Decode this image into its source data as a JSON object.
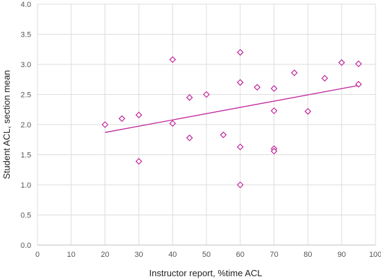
{
  "chart_data": {
    "type": "scatter",
    "xlabel": "Instructor report, %time ACL",
    "ylabel": "Student ACL, section mean",
    "xlim": [
      0,
      100
    ],
    "ylim": [
      0.0,
      4.0
    ],
    "x_ticks": [
      "0",
      "10",
      "20",
      "30",
      "40",
      "50",
      "60",
      "70",
      "80",
      "90",
      "100"
    ],
    "y_ticks": [
      "0.0",
      "0.5",
      "1.0",
      "1.5",
      "2.0",
      "2.5",
      "3.0",
      "3.5",
      "4.0"
    ],
    "grid": true,
    "marker": "diamond",
    "color": "#c0269b",
    "points": [
      {
        "x": 20,
        "y": 2.0
      },
      {
        "x": 25,
        "y": 2.1
      },
      {
        "x": 30,
        "y": 2.16
      },
      {
        "x": 30,
        "y": 1.39
      },
      {
        "x": 40,
        "y": 3.08
      },
      {
        "x": 40,
        "y": 2.02
      },
      {
        "x": 45,
        "y": 2.45
      },
      {
        "x": 45,
        "y": 1.78
      },
      {
        "x": 50,
        "y": 2.5
      },
      {
        "x": 55,
        "y": 1.83
      },
      {
        "x": 60,
        "y": 3.2
      },
      {
        "x": 60,
        "y": 2.7
      },
      {
        "x": 60,
        "y": 1.63
      },
      {
        "x": 60,
        "y": 1.0
      },
      {
        "x": 65,
        "y": 2.62
      },
      {
        "x": 70,
        "y": 2.6
      },
      {
        "x": 70,
        "y": 2.23
      },
      {
        "x": 70,
        "y": 1.6
      },
      {
        "x": 70,
        "y": 1.56
      },
      {
        "x": 76,
        "y": 2.86
      },
      {
        "x": 80,
        "y": 2.22
      },
      {
        "x": 85,
        "y": 2.77
      },
      {
        "x": 90,
        "y": 3.03
      },
      {
        "x": 95,
        "y": 3.01
      },
      {
        "x": 95,
        "y": 2.67
      }
    ],
    "trendline": {
      "x": [
        20,
        95
      ],
      "y": [
        1.87,
        2.65
      ]
    }
  }
}
